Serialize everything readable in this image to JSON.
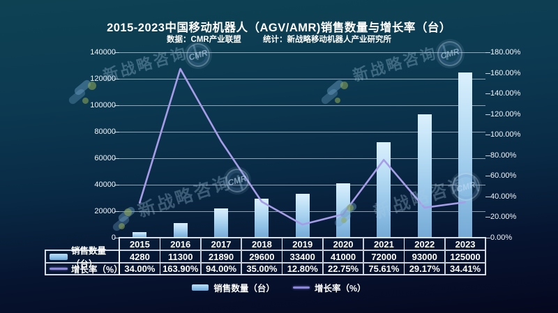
{
  "chart_data": {
    "type": "combo",
    "title": "2015-2023中国移动机器人（AGV/AMR)销售数量与增长率（台）",
    "categories": [
      "2015",
      "2016",
      "2017",
      "2018",
      "2019",
      "2020",
      "2021",
      "2022",
      "2023"
    ],
    "series": [
      {
        "name": "销售数量（台）",
        "chart": "bar",
        "values": [
          4280,
          11300,
          21890,
          29600,
          33400,
          41000,
          72000,
          93000,
          125000
        ]
      },
      {
        "name": "增长率（%）",
        "chart": "line",
        "values": [
          34.0,
          163.9,
          94.0,
          35.0,
          12.8,
          22.75,
          75.61,
          29.17,
          34.41
        ],
        "labels": [
          "34.00%",
          "163.90%",
          "94.00%",
          "35.00%",
          "12.80%",
          "22.75%",
          "75.61%",
          "29.17%",
          "34.41%"
        ]
      }
    ],
    "left_axis": {
      "min": 0,
      "max": 140000,
      "step": 20000,
      "tick_labels": [
        "0",
        "20000",
        "40000",
        "60000",
        "80000",
        "100000",
        "120000",
        "140000"
      ]
    },
    "right_axis": {
      "min": 0,
      "max": 180,
      "step": 20,
      "tick_labels": [
        "0.00%",
        "20.00%",
        "40.00%",
        "60.00%",
        "80.00%",
        "100.00%",
        "120.00%",
        "140.00%",
        "160.00%",
        "180.00%"
      ]
    },
    "grid": true,
    "legend_position": "bottom"
  },
  "subtitle": {
    "data_source": "数据：CMR产业联盟",
    "stat_source": "统计：新战略移动机器人产业研究所"
  },
  "watermark": {
    "text": "新战略咨询",
    "badge": "CMR"
  },
  "colors": {
    "background_top": "#0e4253",
    "background_bottom": "#05081f",
    "bar_light": "#dbf0fd",
    "bar_dark": "#76aad5",
    "line": "#a79ce8",
    "grid": "#e1ebf3",
    "text": "#ffffff"
  }
}
